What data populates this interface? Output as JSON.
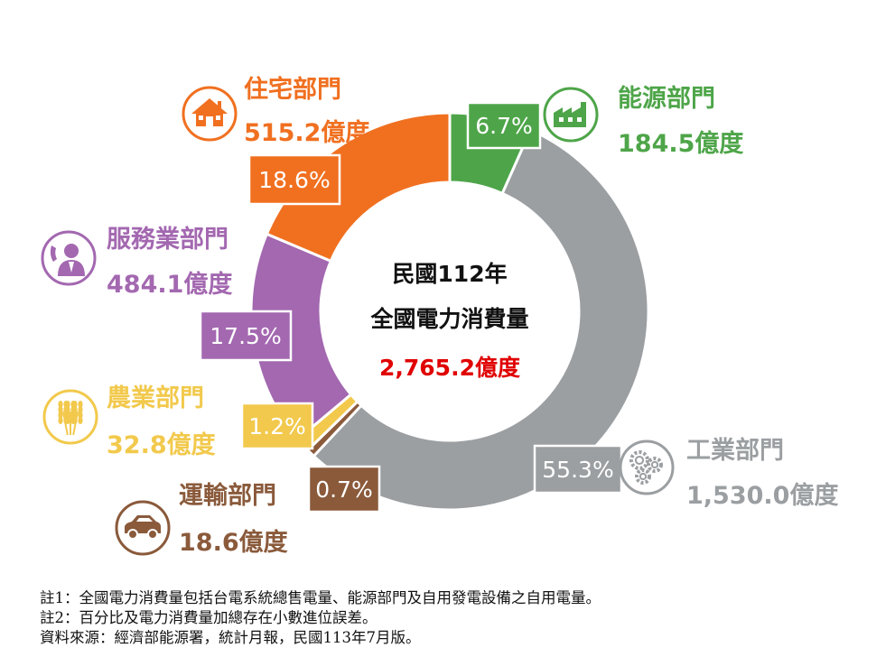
{
  "chart_data": {
    "type": "donut",
    "center": {
      "line1": "民國112年",
      "line2": "全國電力消費量",
      "total": "2,765.2億度"
    },
    "sectors": [
      {
        "name": "能源部門",
        "value": 184.5,
        "value_label": "184.5億度",
        "pct_label": "6.7%",
        "color": "#4ea549",
        "icon": "factory-icon"
      },
      {
        "name": "工業部門",
        "value": 1530.0,
        "value_label": "1,530.0億度",
        "pct_label": "55.3%",
        "color": "#9b9fa2",
        "icon": "gears-icon"
      },
      {
        "name": "運輸部門",
        "value": 18.6,
        "value_label": "18.6億度",
        "pct_label": "0.7%",
        "color": "#8a5a3b",
        "icon": "car-icon"
      },
      {
        "name": "農業部門",
        "value": 32.8,
        "value_label": "32.8億度",
        "pct_label": "1.2%",
        "color": "#f2c94c",
        "icon": "wheat-icon"
      },
      {
        "name": "服務業部門",
        "value": 484.1,
        "value_label": "484.1億度",
        "pct_label": "17.5%",
        "color": "#a368b0",
        "icon": "service-person-icon"
      },
      {
        "name": "住宅部門",
        "value": 515.2,
        "value_label": "515.2億度",
        "pct_label": "18.6%",
        "color": "#f07020",
        "icon": "house-icon"
      }
    ]
  },
  "colors": {
    "center_total": "#e00000",
    "center_text": "#111111"
  },
  "notes": [
    "註1：全國電力消費量包括台電系統總售電量、能源部門及自用發電設備之自用電量。",
    "註2：百分比及電力消費量加總存在小數進位誤差。",
    "資料來源：經濟部能源署，統計月報，民國113年7月版。"
  ]
}
